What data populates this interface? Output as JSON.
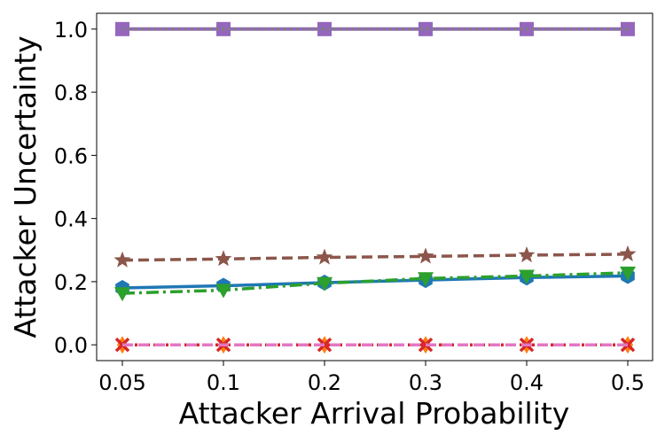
{
  "chart_data": {
    "type": "line",
    "title": "",
    "xlabel": "Attacker Arrival Probability",
    "ylabel": "Attacker Uncertainty",
    "x": [
      0.05,
      0.1,
      0.2,
      0.3,
      0.4,
      0.5
    ],
    "x_tick_labels": [
      "0.05",
      "0.1",
      "0.2",
      "0.3",
      "0.4",
      "0.5"
    ],
    "ylim": [
      -0.05,
      1.05
    ],
    "y_ticks": [
      0.0,
      0.2,
      0.4,
      0.6,
      0.8,
      1.0
    ],
    "y_tick_labels": [
      "0.0",
      "0.2",
      "0.4",
      "0.6",
      "0.8",
      "1.0"
    ],
    "grid": false,
    "legend": "none",
    "series": [
      {
        "color": "#1f77b4",
        "dash": "solid",
        "marker": "hexagon",
        "values": [
          0.18,
          0.187,
          0.197,
          0.205,
          0.213,
          0.218
        ]
      },
      {
        "color": "#ff7f0e",
        "dash": "dashed",
        "marker": "diamond",
        "values": [
          0.0,
          0.0,
          0.0,
          0.0,
          0.0,
          0.0
        ]
      },
      {
        "color": "#2ca02c",
        "dash": "dashdot",
        "marker": "triangle-down",
        "values": [
          0.163,
          0.173,
          0.195,
          0.21,
          0.218,
          0.228
        ]
      },
      {
        "color": "#d62728",
        "dash": "dotted",
        "marker": "x",
        "values": [
          0.0,
          0.0,
          0.0,
          0.0,
          0.0,
          0.0
        ]
      },
      {
        "color": "#9467bd",
        "dash": "solid",
        "marker": "square",
        "values": [
          1.0,
          1.0,
          1.0,
          1.0,
          1.0,
          1.0
        ]
      },
      {
        "color": "#8c564b",
        "dash": "dashed",
        "marker": "star",
        "values": [
          0.268,
          0.272,
          0.277,
          0.28,
          0.284,
          0.287
        ]
      },
      {
        "color": "#e377c2",
        "dash": "dashed",
        "marker": "none",
        "values": [
          0.0,
          0.0,
          0.0,
          0.0,
          0.0,
          0.0
        ]
      },
      {
        "color": "#7f7f7f",
        "dash": "dotted",
        "marker": "none",
        "values": [
          1.0,
          1.0,
          1.0,
          1.0,
          1.0,
          1.0
        ]
      }
    ]
  }
}
